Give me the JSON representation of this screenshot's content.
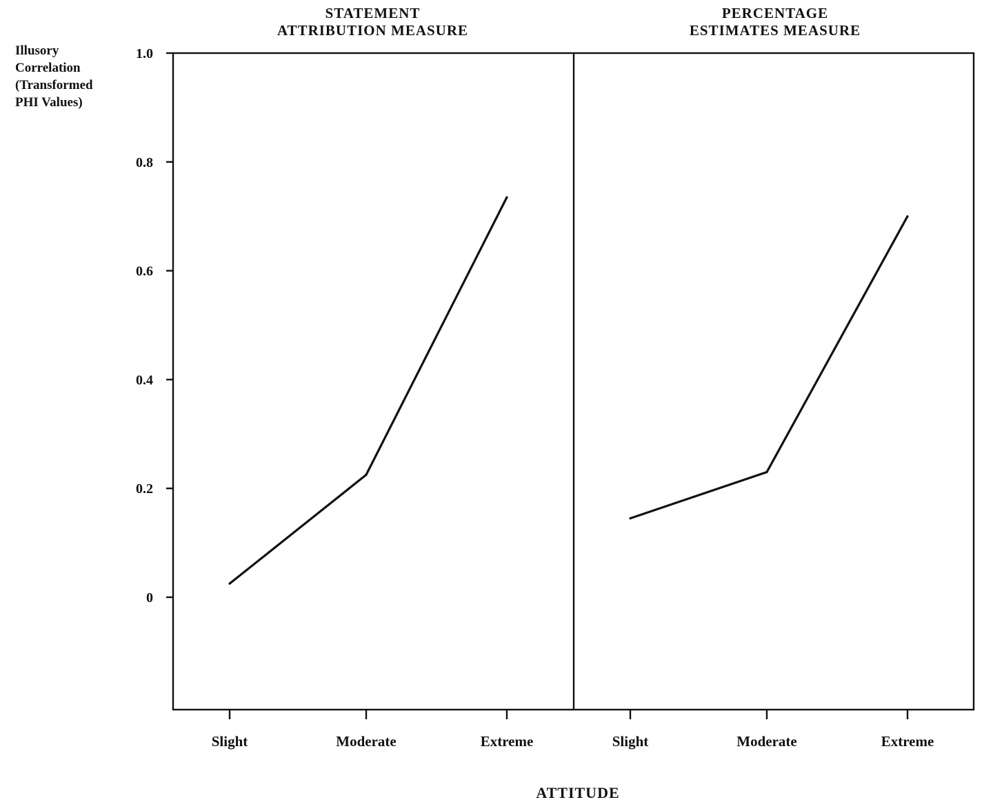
{
  "chart_data": {
    "type": "line",
    "xlabel": "ATTITUDE",
    "ylabel_lines": [
      "Illusory",
      "Correlation",
      "(Transformed",
      "PHI Values)"
    ],
    "ylim": [
      -0.21,
      1.0
    ],
    "yticks": [
      {
        "value": 1.0,
        "label": "1.0"
      },
      {
        "value": 0.8,
        "label": "0.8"
      },
      {
        "value": 0.6,
        "label": "0.6"
      },
      {
        "value": 0.4,
        "label": "0.4"
      },
      {
        "value": 0.2,
        "label": "0.2"
      },
      {
        "value": 0.0,
        "label": "0"
      }
    ],
    "categories": [
      "Slight",
      "Moderate",
      "Extreme"
    ],
    "grid": false,
    "panels": [
      {
        "title_lines": [
          "STATEMENT",
          "ATTRIBUTION  MEASURE"
        ],
        "values": [
          0.025,
          0.225,
          0.735
        ]
      },
      {
        "title_lines": [
          "PERCENTAGE",
          "ESTIMATES  MEASURE"
        ],
        "values": [
          0.145,
          0.23,
          0.7
        ]
      }
    ]
  }
}
